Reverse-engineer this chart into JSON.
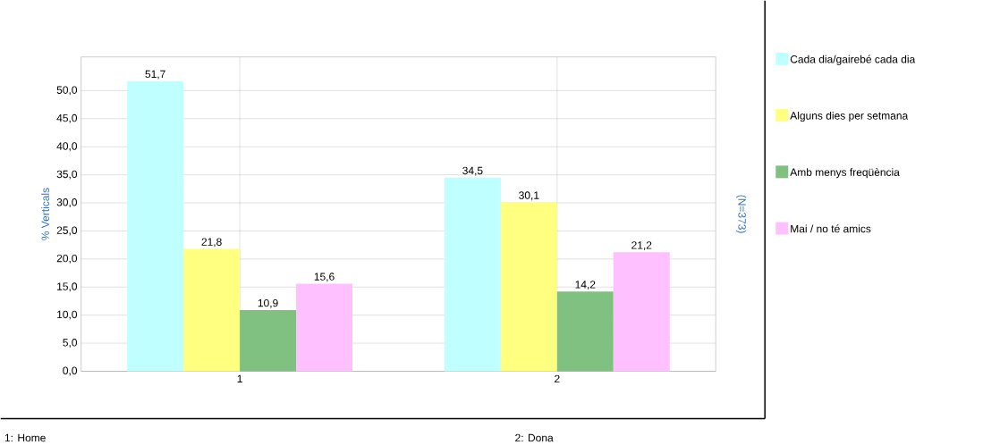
{
  "chart_data": {
    "type": "bar",
    "ylabel": "% Verticals",
    "y2label": "(N=373)",
    "categories": [
      "1",
      "2"
    ],
    "series": [
      {
        "name": "Cada dia/gairebé cada dia",
        "color": "#c0ffff",
        "values": [
          51.7,
          34.5
        ],
        "value_labels": [
          "51,7",
          "34,5"
        ]
      },
      {
        "name": "Alguns dies per setmana",
        "color": "#ffff80",
        "values": [
          21.8,
          30.1
        ],
        "value_labels": [
          "21,8",
          "30,1"
        ]
      },
      {
        "name": "Amb menys freqüència",
        "color": "#80c080",
        "values": [
          10.9,
          14.2
        ],
        "value_labels": [
          "10,9",
          "14,2"
        ]
      },
      {
        "name": "Mai / no té amics",
        "color": "#ffc0ff",
        "values": [
          15.6,
          21.2
        ],
        "value_labels": [
          "15,6",
          "21,2"
        ]
      }
    ],
    "ylim": [
      0,
      56
    ],
    "yticks": [
      {
        "value": 0,
        "label": "0,0"
      },
      {
        "value": 5,
        "label": "5,0"
      },
      {
        "value": 10,
        "label": "10,0"
      },
      {
        "value": 15,
        "label": "15,0"
      },
      {
        "value": 20,
        "label": "20,0"
      },
      {
        "value": 25,
        "label": "25,0"
      },
      {
        "value": 30,
        "label": "30,0"
      },
      {
        "value": 35,
        "label": "35,0"
      },
      {
        "value": 40,
        "label": "40,0"
      },
      {
        "value": 45,
        "label": "45,0"
      },
      {
        "value": 50,
        "label": "50,0"
      }
    ],
    "grid": true,
    "legend": "right",
    "annotations": [
      "1: Home",
      "2: Dona"
    ]
  }
}
